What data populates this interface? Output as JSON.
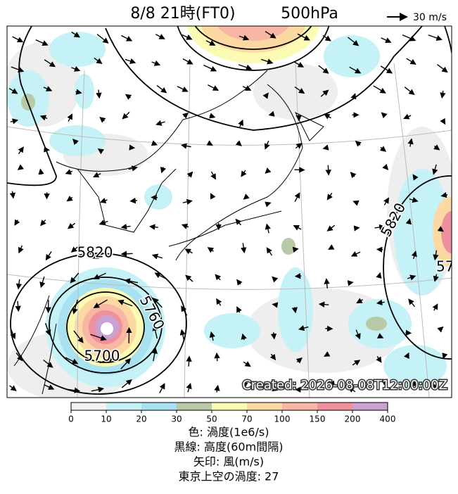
{
  "header": {
    "title": "8/8  21時(FT0)",
    "level": "500hPa",
    "wind_scale": "30 m/s"
  },
  "map": {
    "contour_labels": [
      "5820",
      "5760",
      "5700",
      "5820",
      "57"
    ],
    "created": "Created: 2026-08-08T12:00:00Z"
  },
  "colorbar": {
    "ticks": [
      0,
      10,
      20,
      30,
      50,
      70,
      100,
      150,
      200,
      400
    ],
    "colors": [
      "#f2f2f2",
      "#c4f2f6",
      "#a8e2f2",
      "#b9c9a6",
      "#fbfbb4",
      "#fcd9a3",
      "#f8b7a4",
      "#ef909e",
      "#c8a2d2"
    ]
  },
  "legend": [
    "色: 渦度(1e6/s)",
    "黒線: 高度(60m間隔)",
    "矢印: 風(m/s)",
    "東京上空の渦度: 27"
  ]
}
